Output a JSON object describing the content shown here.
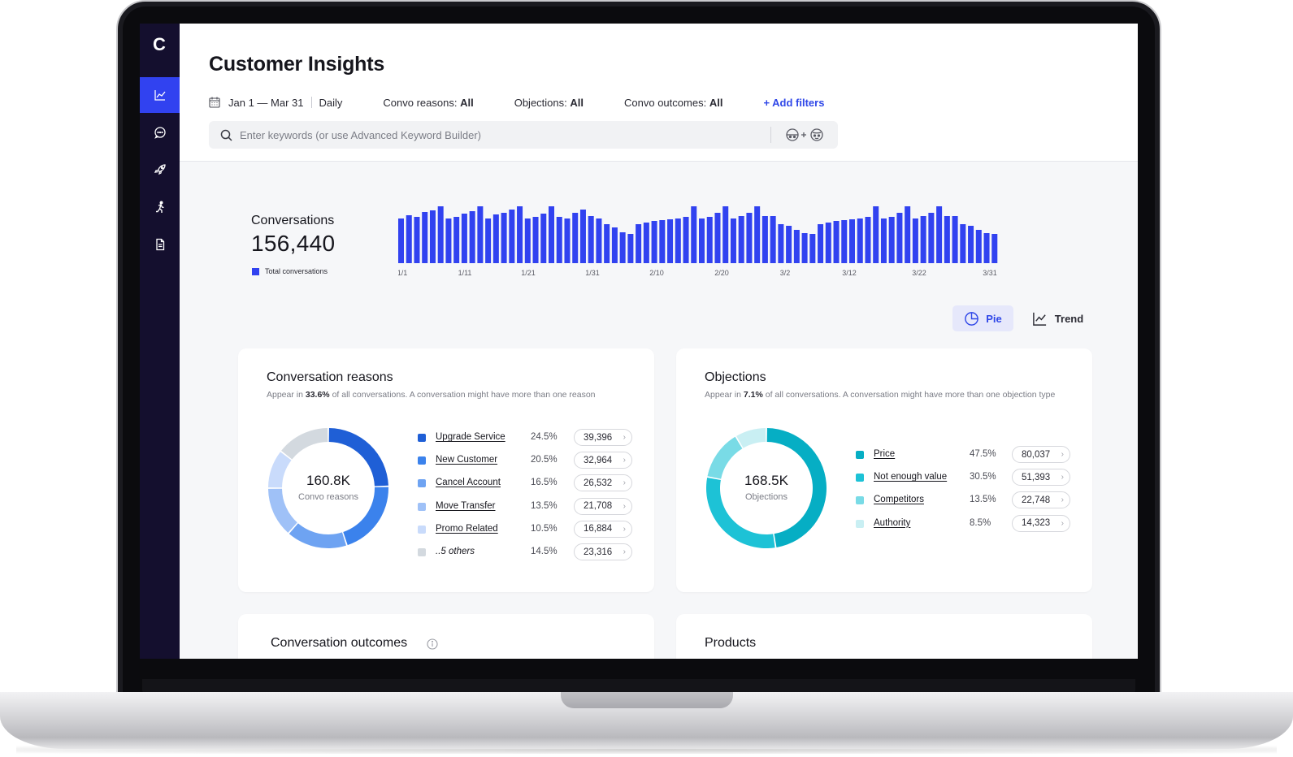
{
  "app": {
    "logo": "C",
    "title": "Customer Insights"
  },
  "sidebar": {
    "items": [
      {
        "icon": "line-chart-icon",
        "active": true
      },
      {
        "icon": "chat-bubble-icon",
        "active": false
      },
      {
        "icon": "rocket-icon",
        "active": false
      },
      {
        "icon": "running-person-icon",
        "active": false
      },
      {
        "icon": "document-icon",
        "active": false
      }
    ]
  },
  "filters": {
    "date_range": "Jan 1 — Mar 31",
    "granularity": "Daily",
    "convo_reasons_label": "Convo reasons:",
    "convo_reasons_value": "All",
    "objections_label": "Objections:",
    "objections_value": "All",
    "convo_outcomes_label": "Convo outcomes:",
    "convo_outcomes_value": "All",
    "add_filters": "+ Add filters"
  },
  "search": {
    "placeholder": "Enter keywords (or use Advanced Keyword Builder)"
  },
  "conversations": {
    "label": "Conversations",
    "total": "156,440",
    "legend": "Total conversations"
  },
  "chart_data": {
    "type": "bar",
    "series": [
      {
        "name": "Total conversations",
        "color": "#3142f0"
      }
    ],
    "x_tick_labels": [
      "1/1",
      "1/11",
      "1/21",
      "1/31",
      "2/10",
      "2/20",
      "3/2",
      "3/12",
      "3/22",
      "3/31"
    ],
    "values": [
      55,
      59,
      57,
      63,
      65,
      70,
      55,
      57,
      61,
      64,
      70,
      55,
      60,
      62,
      66,
      70,
      55,
      57,
      61,
      70,
      57,
      55,
      62,
      66,
      58,
      55,
      48,
      44,
      38,
      36,
      48,
      50,
      52,
      53,
      54,
      55,
      57,
      70,
      55,
      57,
      62,
      70,
      55,
      58,
      62,
      70,
      58,
      58,
      48,
      46,
      41,
      37,
      36,
      48,
      50,
      52,
      53,
      54,
      55,
      57,
      70,
      55,
      57,
      62,
      70,
      55,
      58,
      62,
      70,
      58,
      58,
      48,
      46,
      41,
      37,
      36
    ],
    "grid": false
  },
  "view_toggle": {
    "pie": "Pie",
    "trend": "Trend"
  },
  "reasons_card": {
    "title": "Conversation reasons",
    "subtitle_prefix": "Appear in ",
    "subtitle_pct": "33.6%",
    "subtitle_suffix": " of all conversations. A conversation might have more than one reason",
    "center_value": "160.8K",
    "center_label": "Convo reasons",
    "items": [
      {
        "name": "Upgrade Service",
        "pct": "24.5%",
        "count": "39,396",
        "color": "#1f5fd6",
        "share": 24.5
      },
      {
        "name": "New Customer",
        "pct": "20.5%",
        "count": "32,964",
        "color": "#3b82ec",
        "share": 20.5
      },
      {
        "name": "Cancel Account",
        "pct": "16.5%",
        "count": "26,532",
        "color": "#6ea3f2",
        "share": 16.5
      },
      {
        "name": "Move Transfer",
        "pct": "13.5%",
        "count": "21,708",
        "color": "#9fc1f7",
        "share": 13.5
      },
      {
        "name": "Promo Related",
        "pct": "10.5%",
        "count": "16,884",
        "color": "#c9dbfb",
        "share": 10.5
      },
      {
        "name": "..5 others",
        "pct": "14.5%",
        "count": "23,316",
        "color": "#d3d9df",
        "share": 14.5
      }
    ]
  },
  "objections_card": {
    "title": "Objections",
    "subtitle_prefix": "Appear in ",
    "subtitle_pct": "7.1%",
    "subtitle_suffix": " of all conversations. A conversation might have more than one objection type",
    "center_value": "168.5K",
    "center_label": "Objections",
    "items": [
      {
        "name": "Price",
        "pct": "47.5%",
        "count": "80,037",
        "color": "#06aec4",
        "share": 47.5
      },
      {
        "name": "Not enough value",
        "pct": "30.5%",
        "count": "51,393",
        "color": "#1dc2d6",
        "share": 30.5
      },
      {
        "name": "Competitors",
        "pct": "13.5%",
        "count": "22,748",
        "color": "#79dbe6",
        "share": 13.5
      },
      {
        "name": "Authority",
        "pct": "8.5%",
        "count": "14,323",
        "color": "#c9eff3",
        "share": 8.5
      }
    ]
  },
  "outcomes_card": {
    "title": "Conversation outcomes"
  },
  "products_card": {
    "title": "Products"
  }
}
